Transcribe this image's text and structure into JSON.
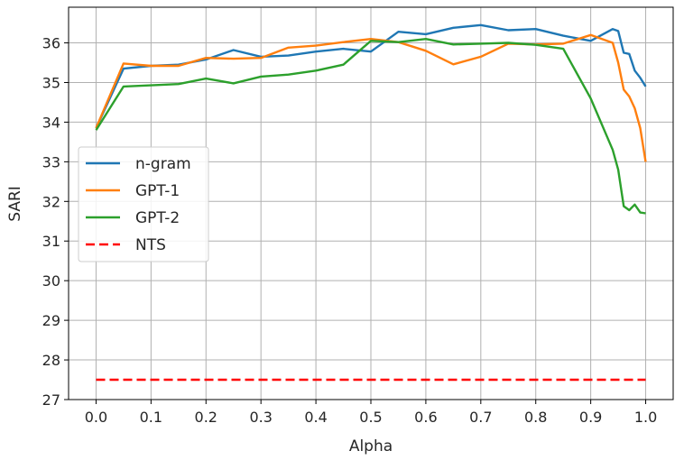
{
  "chart_data": {
    "type": "line",
    "xlabel": "Alpha",
    "ylabel": "SARI",
    "xlim": [
      -0.05,
      1.05
    ],
    "ylim": [
      27,
      36.9
    ],
    "xticks": [
      0.0,
      0.1,
      0.2,
      0.3,
      0.4,
      0.5,
      0.6,
      0.7,
      0.8,
      0.9,
      1.0
    ],
    "xtick_labels": [
      "0.0",
      "0.1",
      "0.2",
      "0.3",
      "0.4",
      "0.5",
      "0.6",
      "0.7",
      "0.8",
      "0.9",
      "1.0"
    ],
    "yticks": [
      27,
      28,
      29,
      30,
      31,
      32,
      33,
      34,
      35,
      36
    ],
    "ytick_labels": [
      "27",
      "28",
      "29",
      "30",
      "31",
      "32",
      "33",
      "34",
      "35",
      "36"
    ],
    "grid": true,
    "legend_position": "center-left",
    "series": [
      {
        "name": "n-gram",
        "color": "#1f77b4",
        "style": "solid",
        "x": [
          0.0,
          0.05,
          0.1,
          0.15,
          0.2,
          0.25,
          0.3,
          0.35,
          0.4,
          0.45,
          0.5,
          0.55,
          0.6,
          0.65,
          0.7,
          0.75,
          0.8,
          0.85,
          0.9,
          0.94,
          0.95,
          0.96,
          0.97,
          0.98,
          0.99,
          1.0
        ],
        "y": [
          33.85,
          35.35,
          35.42,
          35.45,
          35.58,
          35.82,
          35.65,
          35.68,
          35.78,
          35.85,
          35.78,
          36.28,
          36.22,
          36.38,
          36.45,
          36.32,
          36.35,
          36.18,
          36.05,
          36.35,
          36.3,
          35.75,
          35.72,
          35.3,
          35.12,
          34.9
        ]
      },
      {
        "name": "GPT-1",
        "color": "#ff7f0e",
        "style": "solid",
        "x": [
          0.0,
          0.05,
          0.1,
          0.15,
          0.2,
          0.25,
          0.3,
          0.35,
          0.4,
          0.45,
          0.5,
          0.55,
          0.6,
          0.65,
          0.7,
          0.75,
          0.8,
          0.85,
          0.9,
          0.94,
          0.95,
          0.96,
          0.97,
          0.98,
          0.99,
          1.0
        ],
        "y": [
          33.85,
          35.48,
          35.42,
          35.42,
          35.62,
          35.6,
          35.62,
          35.88,
          35.93,
          36.02,
          36.1,
          36.02,
          35.8,
          35.46,
          35.65,
          35.98,
          35.96,
          35.98,
          36.2,
          36.0,
          35.5,
          34.82,
          34.65,
          34.35,
          33.85,
          33.0
        ]
      },
      {
        "name": "GPT-2",
        "color": "#2ca02c",
        "style": "solid",
        "x": [
          0.0,
          0.05,
          0.1,
          0.15,
          0.2,
          0.25,
          0.3,
          0.35,
          0.4,
          0.45,
          0.5,
          0.55,
          0.6,
          0.65,
          0.7,
          0.75,
          0.8,
          0.85,
          0.9,
          0.94,
          0.95,
          0.96,
          0.97,
          0.98,
          0.99,
          1.0
        ],
        "y": [
          33.8,
          34.9,
          34.93,
          34.96,
          35.1,
          34.98,
          35.15,
          35.2,
          35.3,
          35.45,
          36.05,
          36.02,
          36.1,
          35.96,
          35.98,
          36.0,
          35.95,
          35.85,
          34.6,
          33.3,
          32.8,
          31.88,
          31.78,
          31.92,
          31.72,
          31.7
        ]
      },
      {
        "name": "NTS",
        "color": "#ff0000",
        "style": "dashed",
        "x": [
          0.0,
          1.0
        ],
        "y": [
          27.5,
          27.5
        ]
      }
    ]
  }
}
